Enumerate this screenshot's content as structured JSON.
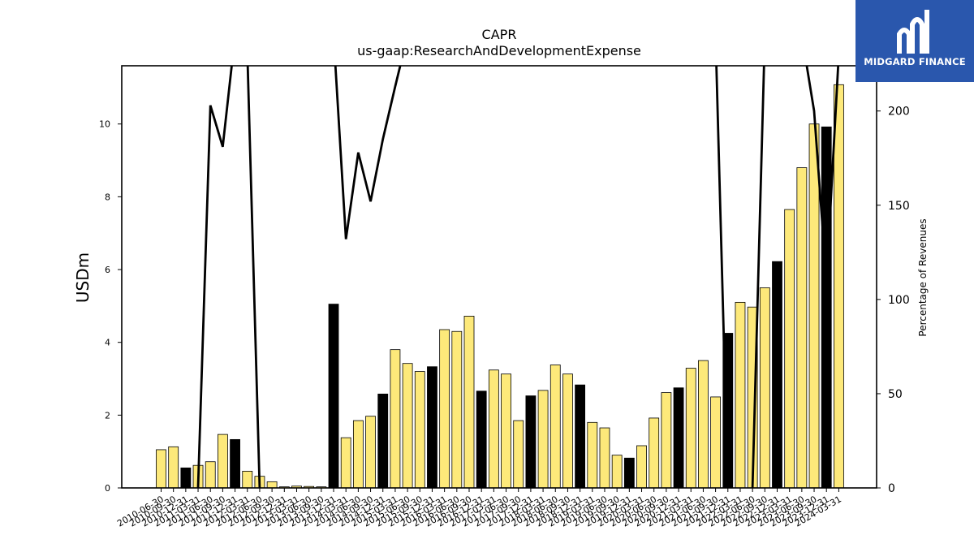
{
  "brand": {
    "name": "MIDGARD FINANCE"
  },
  "colors": {
    "bar_default": "#fde97a",
    "bar_highlight": "#000000",
    "line": "#000000",
    "logo_bg": "#2a57ad"
  },
  "chart_data": {
    "type": "bar",
    "title": "CAPR",
    "subtitle": "us-gaap:ResearchAndDevelopmentExpense",
    "ylabel": "USDm",
    "y2label": "Percentage of Revenues",
    "ylim": [
      0,
      11.6
    ],
    "y2lim": [
      0,
      224
    ],
    "yticks": [
      0,
      2,
      4,
      6,
      8,
      10
    ],
    "y2ticks": [
      0,
      50,
      100,
      150,
      200
    ],
    "categories": [
      "2010-06-30",
      "2010-09-30",
      "2010-12-31",
      "2011-03-31",
      "2011-06-30",
      "2011-09-30",
      "2011-12-31",
      "2012-03-31",
      "2012-06-30",
      "2012-09-30",
      "2012-12-31",
      "2013-03-31",
      "2013-06-30",
      "2013-09-30",
      "2013-12-31",
      "2014-03-31",
      "2014-06-30",
      "2014-09-30",
      "2014-12-31",
      "2015-03-31",
      "2015-06-30",
      "2015-09-30",
      "2015-12-31",
      "2016-03-31",
      "2016-06-30",
      "2016-09-30",
      "2016-12-31",
      "2017-03-31",
      "2017-06-30",
      "2017-09-30",
      "2017-12-31",
      "2018-03-31",
      "2018-06-30",
      "2018-09-30",
      "2018-12-31",
      "2019-03-31",
      "2019-06-30",
      "2019-09-30",
      "2019-12-31",
      "2020-03-31",
      "2020-06-30",
      "2020-09-30",
      "2020-12-31",
      "2021-03-31",
      "2021-06-30",
      "2021-09-30",
      "2021-12-31",
      "2022-03-31",
      "2022-06-30",
      "2022-09-30",
      "2022-12-31",
      "2023-03-31",
      "2023-06-30",
      "2023-09-30",
      "2023-12-31",
      "2024-03-31"
    ],
    "series": [
      {
        "values": [
          1.05,
          1.13,
          0.55,
          0.62,
          0.72,
          1.47,
          1.33,
          0.46,
          0.32,
          0.17,
          0.03,
          0.05,
          0.04,
          0.03,
          5.05,
          1.38,
          1.85,
          1.97,
          2.58,
          3.8,
          3.42,
          3.2,
          3.33,
          4.35,
          4.3,
          4.72,
          2.66,
          3.24,
          3.13,
          1.85,
          2.53,
          2.68,
          3.38,
          3.13,
          2.83,
          1.8,
          1.65,
          0.9,
          0.82,
          1.16,
          1.92,
          2.62,
          2.75,
          3.29,
          3.5,
          2.5,
          4.25,
          5.1,
          4.97,
          5.5,
          6.22,
          7.65,
          8.8,
          10.0,
          9.92,
          11.08
        ],
        "highlight": [
          false,
          false,
          true,
          false,
          false,
          false,
          true,
          false,
          false,
          false,
          false,
          false,
          false,
          false,
          true,
          false,
          false,
          false,
          true,
          false,
          false,
          false,
          true,
          false,
          false,
          false,
          true,
          false,
          false,
          false,
          true,
          false,
          false,
          false,
          true,
          false,
          false,
          false,
          true,
          false,
          false,
          false,
          true,
          false,
          false,
          false,
          true,
          false,
          false,
          false,
          true,
          false,
          false,
          false,
          true,
          false
        ]
      },
      {
        "values": [
          null,
          null,
          null,
          0,
          203,
          181,
          240,
          230,
          0,
          null,
          null,
          null,
          null,
          null,
          240,
          132,
          178,
          152,
          185,
          213,
          240,
          null,
          null,
          null,
          null,
          null,
          null,
          null,
          null,
          null,
          null,
          null,
          null,
          null,
          null,
          null,
          null,
          null,
          null,
          null,
          null,
          null,
          null,
          null,
          null,
          240,
          0,
          null,
          0,
          240,
          null,
          null,
          240,
          200,
          110,
          230
        ]
      }
    ]
  }
}
